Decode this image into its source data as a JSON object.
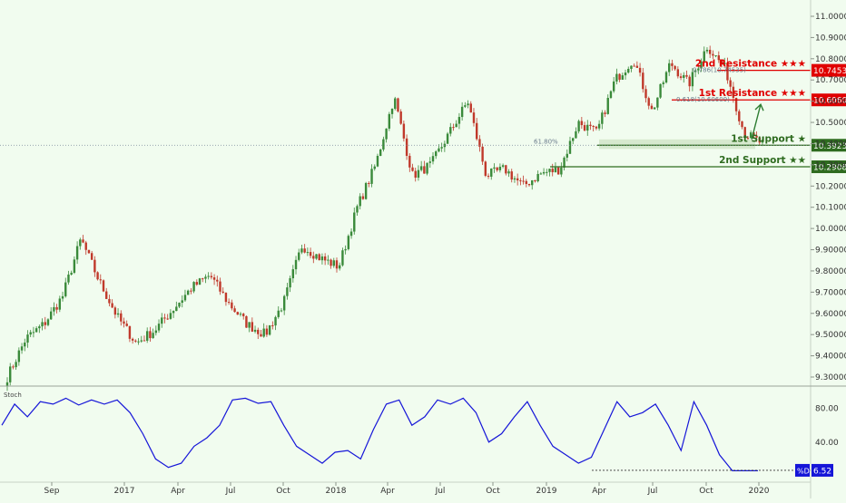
{
  "chart_data": {
    "type": "line",
    "series": [
      {
        "name": "",
        "x": [
          "2016-07",
          "2016-08",
          "2016-09",
          "2016-10",
          "2016-11",
          "2016-12",
          "2017-01",
          "2017-02",
          "2017-03",
          "2017-04",
          "2017-05",
          "2017-06",
          "2017-07",
          "2017-08",
          "2017-09",
          "2017-10",
          "2017-11",
          "2017-12",
          "2018-01",
          "2018-02",
          "2018-03",
          "2018-04",
          "2018-05",
          "2018-06",
          "2018-07",
          "2018-08",
          "2018-09",
          "2018-10",
          "2018-11",
          "2018-12",
          "2019-01",
          "2019-02",
          "2019-03",
          "2019-04",
          "2019-05",
          "2019-06",
          "2019-07",
          "2019-08",
          "2019-09",
          "2019-10",
          "2019-11",
          "2019-12"
        ],
        "values": [
          9.3,
          9.48,
          9.55,
          9.68,
          9.95,
          9.75,
          9.58,
          9.46,
          9.52,
          9.62,
          9.72,
          9.78,
          9.65,
          9.55,
          9.5,
          9.65,
          9.92,
          9.86,
          9.82,
          10.1,
          10.3,
          10.62,
          10.25,
          10.3,
          10.45,
          10.6,
          10.25,
          10.28,
          10.2,
          10.26,
          10.28,
          10.5,
          10.45,
          10.7,
          10.8,
          10.55,
          10.78,
          10.68,
          10.86,
          10.75,
          10.45,
          10.4
        ]
      }
    ],
    "ylim": [
      9.25,
      11.05
    ],
    "yticks": [
      "11.00000",
      "10.90000",
      "10.80000",
      "10.70000",
      "10.60000",
      "10.50000",
      "10.40000",
      "10.30000",
      "10.20000",
      "10.10000",
      "10.00000",
      "9.90000",
      "9.80000",
      "9.70000",
      "9.60000",
      "9.50000",
      "9.40000",
      "9.30000"
    ],
    "xticks": [
      "Sep",
      "2017",
      "Apr",
      "Jul",
      "Oct",
      "2018",
      "Apr",
      "Jul",
      "Oct",
      "2019",
      "Apr",
      "Jul",
      "Oct",
      "2020"
    ],
    "current_price": "10.39237",
    "levels": [
      {
        "label": "2nd Resistance ★★★",
        "value": "10.74535",
        "color": "#e00000"
      },
      {
        "label": "1st Resistance ★★★",
        "value": "10.60609",
        "color": "#e00000"
      },
      {
        "label": "1st Support ★",
        "value": "10.39237",
        "color": "#2e6b1f"
      },
      {
        "label": "2nd Support ★★",
        "value": "10.29087",
        "color": "#2e6b1f"
      }
    ],
    "fib_labels": [
      "61.80%",
      "0.618(10.60609)",
      "0.786(10.74535)"
    ],
    "stochastic": {
      "label": "Stoch",
      "yticks": [
        "80.00",
        "40.00"
      ],
      "ylim": [
        0,
        100
      ],
      "value_tag": "%D",
      "value": "6.52",
      "values": [
        60,
        85,
        70,
        88,
        85,
        92,
        84,
        90,
        85,
        90,
        75,
        50,
        20,
        10,
        15,
        35,
        45,
        60,
        90,
        92,
        86,
        88,
        60,
        35,
        25,
        15,
        28,
        30,
        20,
        55,
        85,
        90,
        60,
        70,
        90,
        85,
        92,
        75,
        40,
        50,
        70,
        88,
        60,
        35,
        25,
        15,
        22,
        55,
        88,
        70,
        75,
        85,
        60,
        30,
        88,
        60,
        25,
        6,
        6,
        6
      ]
    },
    "colors": {
      "up": "#3a8a3a",
      "down": "#c0392b",
      "stoch": "#1515d8",
      "background": "#f1fcef",
      "resistance": "#e00000",
      "support": "#2e6b1f"
    }
  }
}
